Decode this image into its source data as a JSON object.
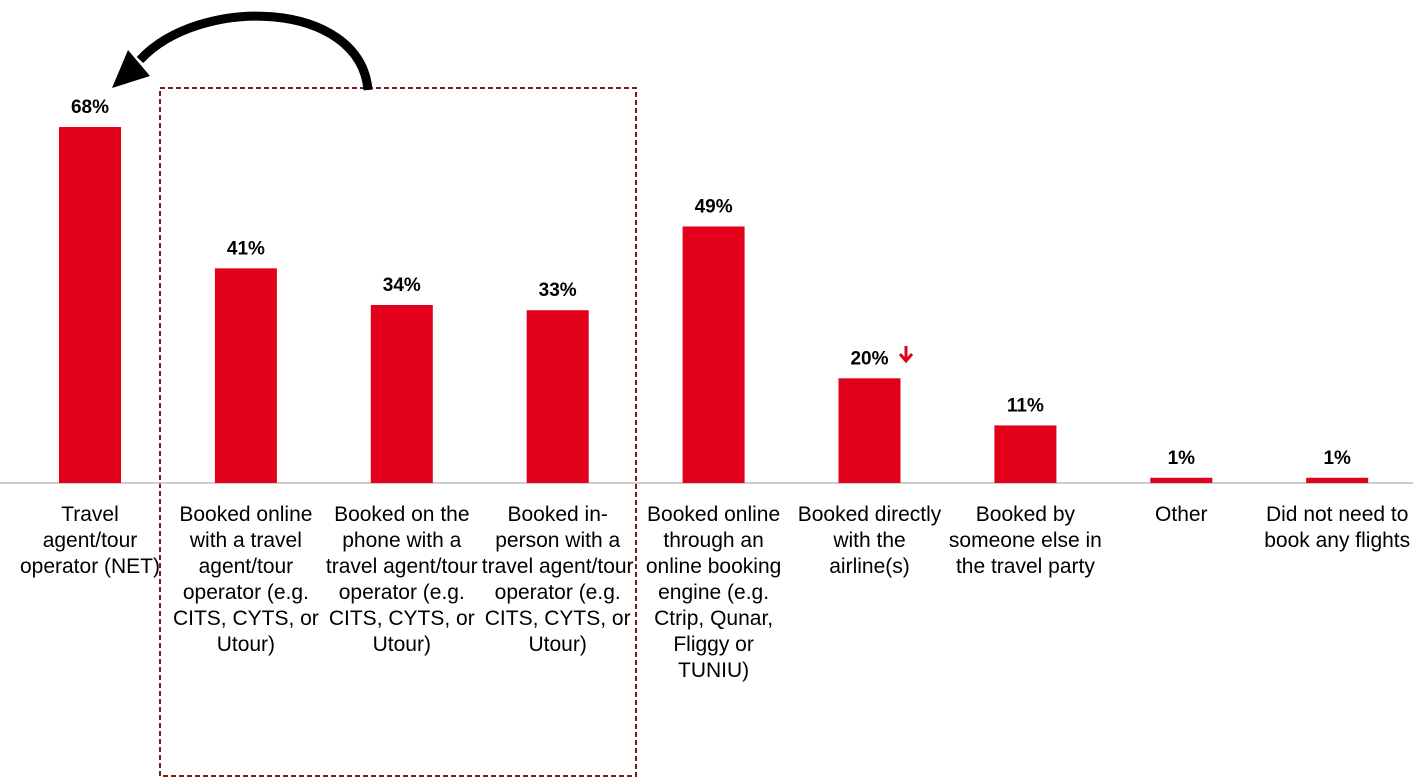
{
  "chart_data": {
    "type": "bar",
    "categories": [
      "Travel agent/tour operator (NET)",
      "Booked online with a travel agent/tour operator (e.g. CITS, CYTS, or Utour)",
      "Booked on the phone with a travel agent/tour operator (e.g. CITS, CYTS, or Utour)",
      "Booked in-person with a travel agent/tour operator (e.g. CITS, CYTS, or Utour)",
      "Booked online through an online booking engine (e.g. Ctrip, Qunar, Fliggy or TUNIU)",
      "Booked directly with the airline(s)",
      "Booked by someone else in the travel party",
      "Other",
      "Did not need to book any flights"
    ],
    "values": [
      68,
      41,
      34,
      33,
      49,
      20,
      11,
      1,
      1
    ],
    "value_labels": [
      "68%",
      "41%",
      "34%",
      "33%",
      "49%",
      "20%",
      "11%",
      "1%",
      "1%"
    ],
    "color": "#e2001a"
  }
}
